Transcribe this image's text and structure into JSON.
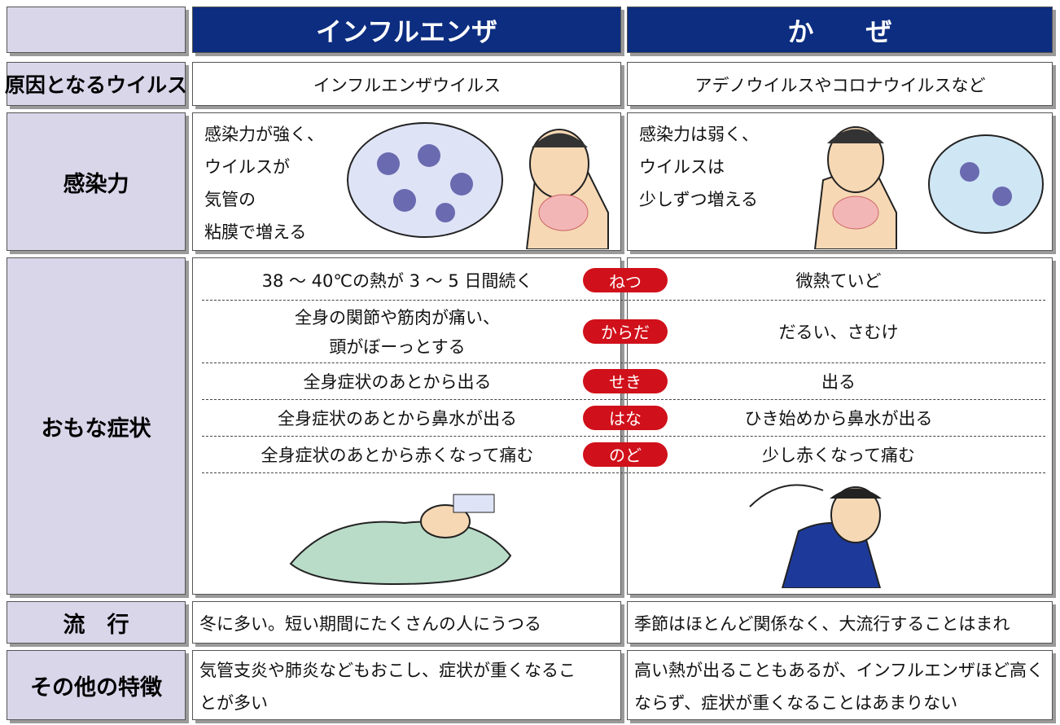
{
  "header": {
    "columns": [
      "インフルエンザ",
      "か　　ぜ"
    ]
  },
  "rows": [
    {
      "label": "原因となるウイルス",
      "influenza": "インフルエンザウイルス",
      "cold": "アデノウイルスやコロナウイルスなど"
    },
    {
      "label": "感染力",
      "influenza": [
        "感染力が強く、",
        "ウイルスが",
        "気管の",
        "粘膜で増える"
      ],
      "cold": [
        "感染力は弱く、",
        "ウイルスは",
        "少しずつ増える"
      ]
    },
    {
      "label": "おもな症状",
      "symptoms": [
        {
          "tag": "ねつ",
          "influenza": [
            "38 ～ 40℃の熱が 3 ～ 5 日間続く"
          ],
          "cold": "微熱ていど"
        },
        {
          "tag": "からだ",
          "influenza": [
            "全身の関節や筋肉が痛い、",
            "頭がぼーっとする"
          ],
          "cold": "だるい、さむけ"
        },
        {
          "tag": "せき",
          "influenza": [
            "全身症状のあとから出る"
          ],
          "cold": "出る"
        },
        {
          "tag": "はな",
          "influenza": [
            "全身症状のあとから鼻水が出る"
          ],
          "cold": "ひき始めから鼻水が出る"
        },
        {
          "tag": "のど",
          "influenza": [
            "全身症状のあとから赤くなって痛む"
          ],
          "cold": "少し赤くなって痛む"
        }
      ]
    },
    {
      "label": "流　行",
      "influenza": "冬に多い。短い期間にたくさんの人にうつる",
      "cold": "季節はほとんど関係なく、大流行することはまれ"
    },
    {
      "label": "その他の特徴",
      "influenza": [
        "気管支炎や肺炎などもおこし、症状が重くなるこ",
        "とが多い"
      ],
      "cold": [
        "高い熱が出ることもあるが、インフルエンザほど高く",
        "ならず、症状が重くなることはあまりない"
      ]
    }
  ]
}
